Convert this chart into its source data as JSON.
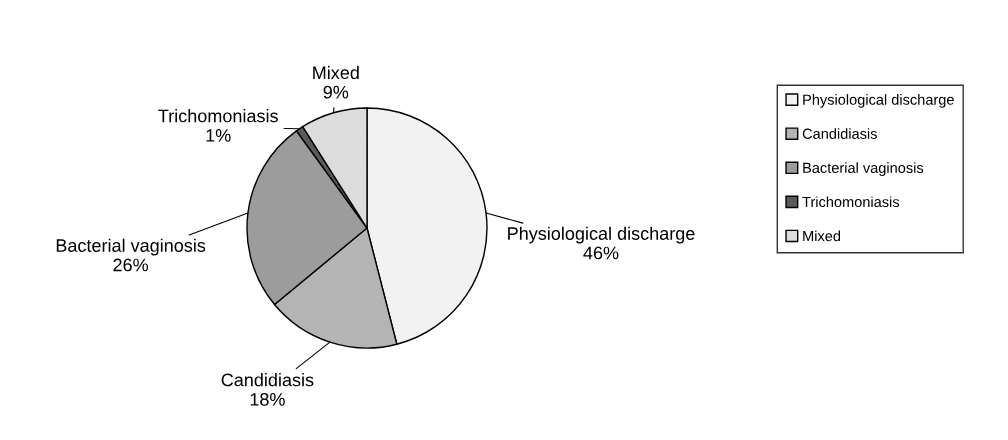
{
  "chart_data": {
    "type": "pie",
    "categories": [
      "Physiological discharge",
      "Candidiasis",
      "Bacterial vaginosis",
      "Trichomoniasis",
      "Mixed"
    ],
    "values": [
      46,
      18,
      26,
      1,
      9
    ],
    "colors": [
      "#f2f2f2",
      "#b4b4b4",
      "#9c9c9c",
      "#5a5a5a",
      "#dcdcdc"
    ],
    "value_labels": [
      "46%",
      "18%",
      "26%",
      "1%",
      "9%"
    ],
    "legend": "right"
  }
}
